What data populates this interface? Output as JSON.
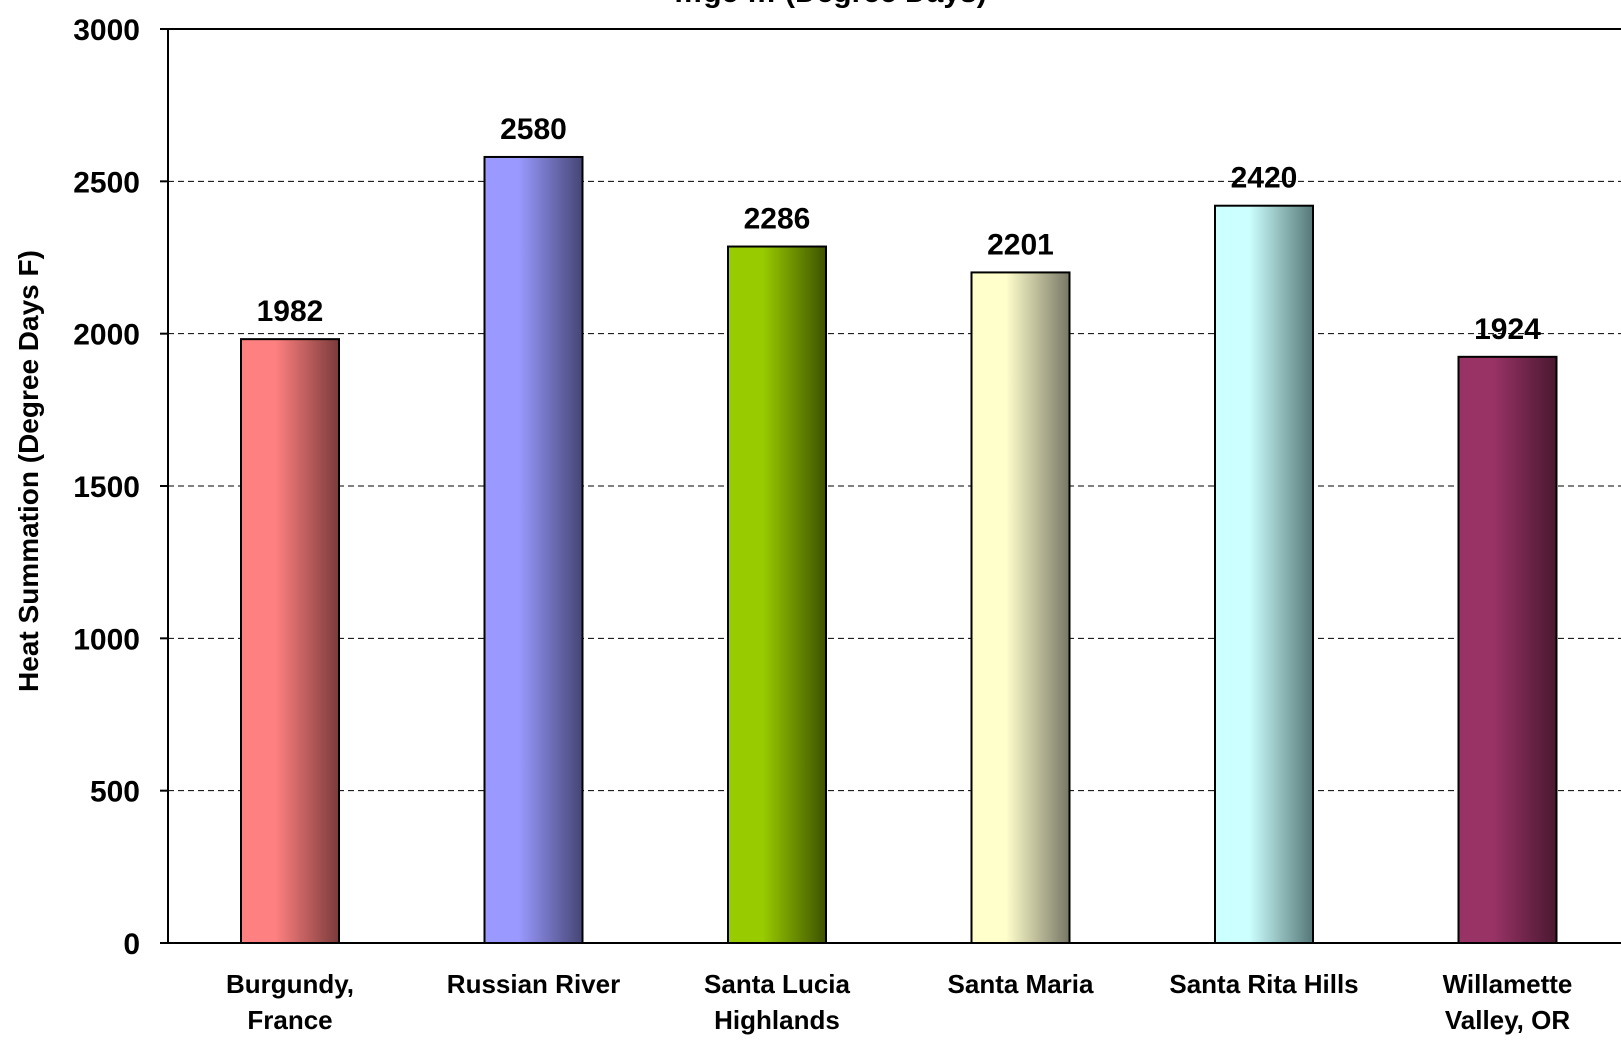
{
  "chart_data": {
    "type": "bar",
    "title": "…ge … (Degree Days)",
    "ylabel": "Heat Summation (Degree Days F)",
    "xlabel": "",
    "categories": [
      [
        "Burgundy,",
        "France"
      ],
      [
        "Russian River"
      ],
      [
        "Santa Lucia",
        "Highlands"
      ],
      [
        "Santa Maria"
      ],
      [
        "Santa Rita Hills"
      ],
      [
        "Willamette",
        "Valley, OR"
      ]
    ],
    "values": [
      1982,
      2580,
      2286,
      2201,
      2420,
      1924
    ],
    "data_labels": [
      "1982",
      "2580",
      "2286",
      "2201",
      "2420",
      "1924"
    ],
    "ylim": [
      0,
      3000
    ],
    "yticks": [
      0,
      500,
      1000,
      1500,
      2000,
      2500,
      3000
    ],
    "ytick_labels": [
      "0",
      "500",
      "1000",
      "1500",
      "2000",
      "2500",
      "3000"
    ],
    "grid": "horizontal dashed",
    "legend": "none",
    "bar_colors": [
      [
        "#ff8080",
        "#7a3a3a"
      ],
      [
        "#9999ff",
        "#454575"
      ],
      [
        "#99cc00",
        "#3d5200"
      ],
      [
        "#ffffcc",
        "#777766"
      ],
      [
        "#ccffff",
        "#557777"
      ],
      [
        "#993366",
        "#4a1830"
      ]
    ]
  }
}
